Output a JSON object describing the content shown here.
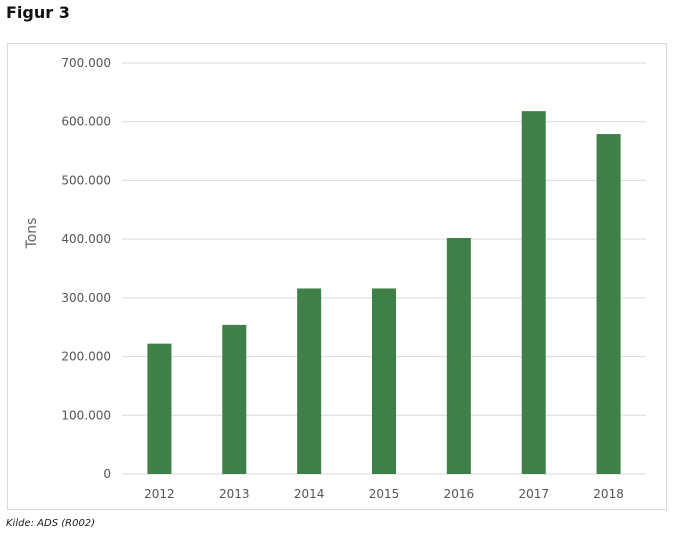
{
  "figure": {
    "title": "Figur 3",
    "source": "Kilde: ADS (R002)"
  },
  "colors": {
    "bar": "#3e8047",
    "grid": "#d9d9d9",
    "tick_text": "#555555",
    "axis_label": "#666666"
  },
  "chart_data": {
    "type": "bar",
    "title": "",
    "xlabel": "",
    "ylabel": "Tons",
    "categories": [
      "2012",
      "2013",
      "2014",
      "2015",
      "2016",
      "2017",
      "2018"
    ],
    "values": [
      222000,
      254000,
      316000,
      316000,
      402000,
      618000,
      579000
    ],
    "ylim": [
      0,
      700000
    ],
    "yticks": [
      0,
      100000,
      200000,
      300000,
      400000,
      500000,
      600000,
      700000
    ],
    "ytick_labels": [
      "0",
      "100.000",
      "200.000",
      "300.000",
      "400.000",
      "500.000",
      "600.000",
      "700.000"
    ],
    "grid": true,
    "legend": "none"
  }
}
